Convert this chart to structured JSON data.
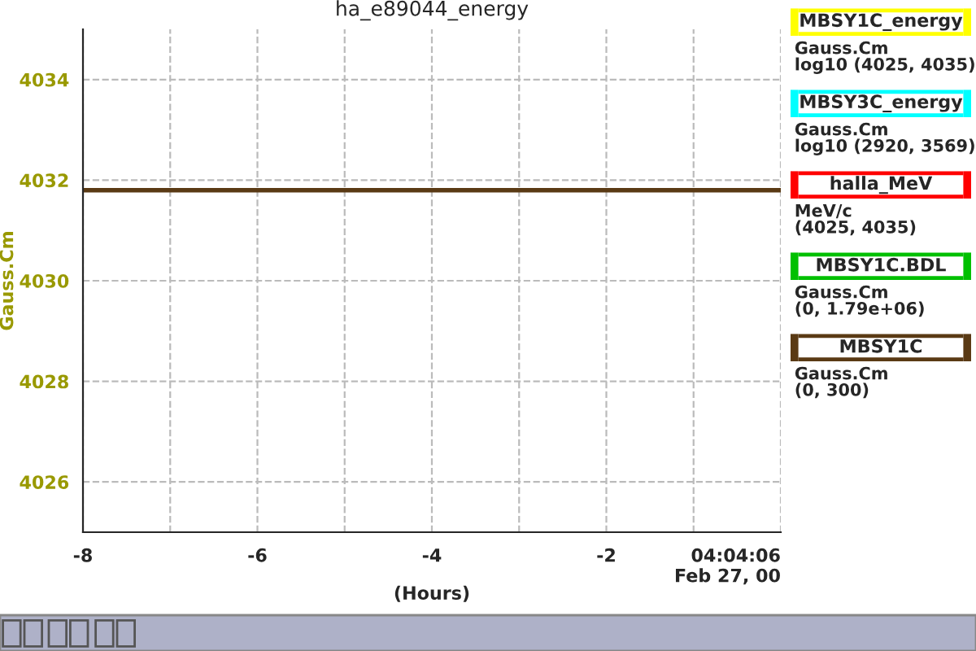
{
  "chart_data": {
    "type": "line",
    "title": "ha_e89044_energy",
    "xlabel": "(Hours)",
    "ylabel": "Gauss.Cm",
    "x": [
      -8,
      0
    ],
    "series": [
      {
        "name": "MBSY1C_energy",
        "color": "#ffff00",
        "values": [
          null,
          null
        ]
      },
      {
        "name": "MBSY3C_energy",
        "color": "#00ffff",
        "values": [
          null,
          null
        ]
      },
      {
        "name": "halla_MeV",
        "color": "#ff0000",
        "values": [
          null,
          null
        ]
      },
      {
        "name": "MBSY1C.BDL",
        "color": "#00c000",
        "values": [
          null,
          null
        ]
      },
      {
        "name": "MBSY1C",
        "color": "#5a3a14",
        "values": [
          4031.8,
          4031.8
        ]
      }
    ],
    "annotations": [
      "Gauss.Cm\nlog10 (4025, 4035)",
      "Gauss.Cm\nlog10 (2920, 3569)",
      "MeV/c\n(4025, 4035)",
      "Gauss.Cm\n(0, 1.79e+06)",
      "Gauss.Cm\n(0, 300)"
    ],
    "xlim": [
      -8,
      0
    ],
    "xticks": [
      -8,
      {
        "value": -7,
        "label": null
      },
      -6,
      {
        "value": -5,
        "label": null
      },
      -4,
      {
        "value": -3,
        "label": null
      },
      -2,
      {
        "value": -1,
        "label": null
      },
      {
        "value": 0,
        "label": "04:04:06\nFeb 27, 00"
      }
    ],
    "ylim": [
      4025,
      4035
    ],
    "yticks": [
      4026,
      4028,
      4030,
      4032,
      4034
    ],
    "grid": true,
    "legend": "right",
    "line_style": "solid",
    "marker": "none"
  }
}
